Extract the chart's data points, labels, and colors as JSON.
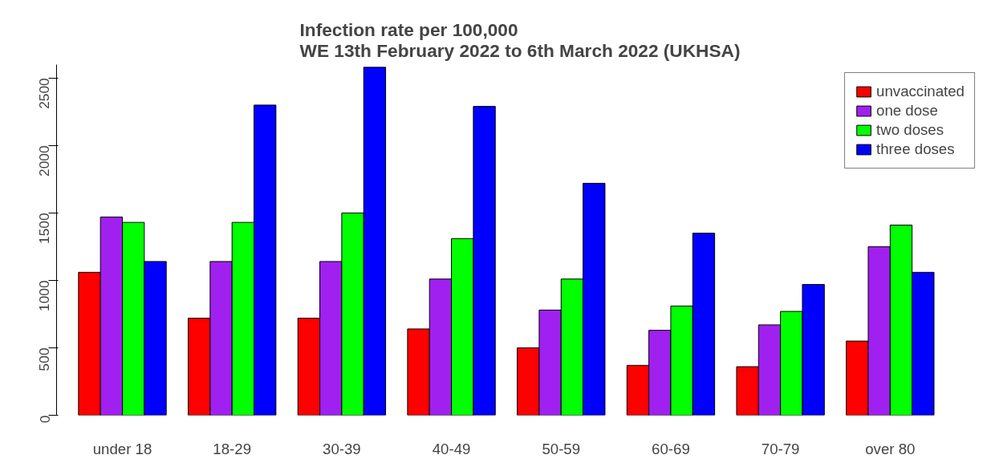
{
  "chart_data": {
    "type": "bar",
    "title": "Infection rate per 100,000\nWE 13th February 2022 to 6th March 2022 (UKHSA)",
    "categories": [
      "under 18",
      "18-29",
      "30-39",
      "40-49",
      "50-59",
      "60-69",
      "70-79",
      "over 80"
    ],
    "series": [
      {
        "name": "unvaccinated",
        "color": "#ff0000",
        "values": [
          1060,
          720,
          720,
          640,
          500,
          370,
          360,
          550
        ]
      },
      {
        "name": "one dose",
        "color": "#a020f0",
        "values": [
          1470,
          1140,
          1140,
          1010,
          780,
          630,
          670,
          1250
        ]
      },
      {
        "name": "two doses",
        "color": "#00ff00",
        "values": [
          1430,
          1430,
          1500,
          1310,
          1010,
          810,
          770,
          1410
        ]
      },
      {
        "name": "three doses",
        "color": "#0000ff",
        "values": [
          1140,
          2300,
          2580,
          2290,
          1720,
          1350,
          970,
          1060
        ]
      }
    ],
    "ylim": [
      0,
      2600
    ],
    "yticks": [
      0,
      500,
      1000,
      1500,
      2000,
      2500
    ],
    "grid": false,
    "legend": "top right"
  }
}
